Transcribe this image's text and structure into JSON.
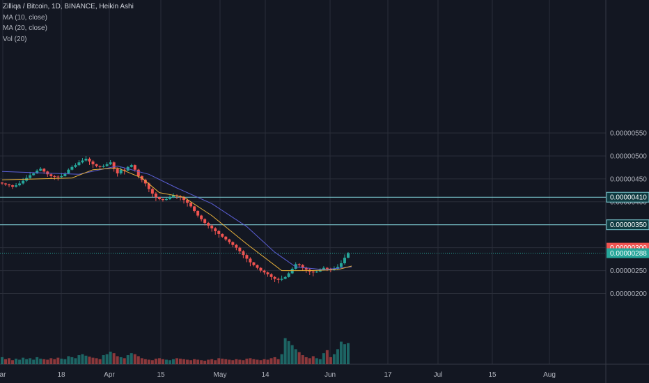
{
  "header": {
    "title": "Zilliqa / Bitcoin, 1D, BINANCE, Heikin Ashi",
    "indicators": [
      "MA (10, close)",
      "MA (20, close)",
      "Vol (20)"
    ]
  },
  "colors": {
    "background": "#131722",
    "grid": "#2a2e39",
    "up": "#26a69a",
    "down": "#ef5350",
    "ma10": "#e9b23a",
    "ma20": "#5b5fd6",
    "hline": "#7ecfd6",
    "axis_text": "#b2b5be"
  },
  "chart_data": {
    "type": "candlestick",
    "title": "Zilliqa / Bitcoin, 1D, BINANCE, Heikin Ashi",
    "x_ticks": [
      "ar",
      "18",
      "Apr",
      "15",
      "May",
      "14",
      "Jun",
      "17",
      "Jul",
      "15",
      "Aug"
    ],
    "y_ticks": [
      "0.00000550",
      "0.00000500",
      "0.00000450",
      "0.00000400",
      "0.00000350",
      "0.00000300",
      "0.00000250",
      "0.00000200"
    ],
    "y_tick_values": [
      550,
      500,
      450,
      400,
      350,
      300,
      250,
      200
    ],
    "y_unit": "1e-8 BTC",
    "ylim": [
      165,
      580
    ],
    "horizontal_lines": [
      {
        "value": 410,
        "label": "0.00000410"
      },
      {
        "value": 350,
        "label": "0.00000350"
      }
    ],
    "price_labels": [
      {
        "value": 300,
        "label": "0.00000300",
        "kind": "down"
      },
      {
        "value": 288,
        "label": "0.00000288",
        "kind": "up"
      }
    ],
    "close_line": 288,
    "series_close": [
      440,
      438,
      436,
      433,
      436,
      440,
      446,
      452,
      458,
      462,
      468,
      472,
      466,
      460,
      456,
      455,
      454,
      456,
      462,
      470,
      476,
      480,
      486,
      490,
      494,
      488,
      482,
      478,
      476,
      478,
      482,
      486,
      472,
      462,
      470,
      468,
      476,
      480,
      470,
      456,
      448,
      440,
      428,
      418,
      410,
      406,
      404,
      406,
      410,
      414,
      412,
      410,
      404,
      398,
      390,
      380,
      370,
      362,
      354,
      348,
      342,
      336,
      330,
      324,
      318,
      312,
      306,
      300,
      292,
      284,
      276,
      268,
      262,
      256,
      250,
      246,
      242,
      236,
      232,
      230,
      232,
      236,
      244,
      254,
      264,
      262,
      256,
      252,
      248,
      246,
      248,
      252,
      256,
      254,
      252,
      254,
      258,
      266,
      278,
      288
    ],
    "ma10_anchors": [
      [
        0,
        448
      ],
      [
        20,
        452
      ],
      [
        26,
        470
      ],
      [
        33,
        474
      ],
      [
        40,
        452
      ],
      [
        45,
        420
      ],
      [
        52,
        410
      ],
      [
        60,
        370
      ],
      [
        70,
        308
      ],
      [
        80,
        250
      ],
      [
        88,
        250
      ],
      [
        96,
        252
      ],
      [
        100,
        260
      ]
    ],
    "ma20_anchors": [
      [
        0,
        466
      ],
      [
        22,
        460
      ],
      [
        33,
        478
      ],
      [
        42,
        460
      ],
      [
        50,
        430
      ],
      [
        60,
        396
      ],
      [
        70,
        346
      ],
      [
        78,
        290
      ],
      [
        84,
        258
      ],
      [
        92,
        252
      ],
      [
        100,
        258
      ]
    ],
    "volume": [
      14,
      10,
      12,
      8,
      11,
      9,
      13,
      10,
      12,
      9,
      14,
      11,
      10,
      9,
      12,
      10,
      13,
      11,
      10,
      16,
      14,
      12,
      18,
      20,
      17,
      15,
      13,
      12,
      10,
      18,
      20,
      25,
      22,
      16,
      14,
      12,
      18,
      22,
      20,
      16,
      12,
      10,
      9,
      8,
      11,
      12,
      10,
      9,
      8,
      10,
      12,
      11,
      10,
      9,
      8,
      10,
      9,
      8,
      7,
      9,
      10,
      8,
      12,
      11,
      10,
      9,
      8,
      10,
      9,
      8,
      11,
      12,
      10,
      9,
      8,
      10,
      9,
      12,
      14,
      10,
      20,
      52,
      46,
      38,
      30,
      24,
      18,
      14,
      12,
      16,
      12,
      10,
      22,
      28,
      14,
      20,
      30,
      45,
      40,
      42
    ]
  }
}
